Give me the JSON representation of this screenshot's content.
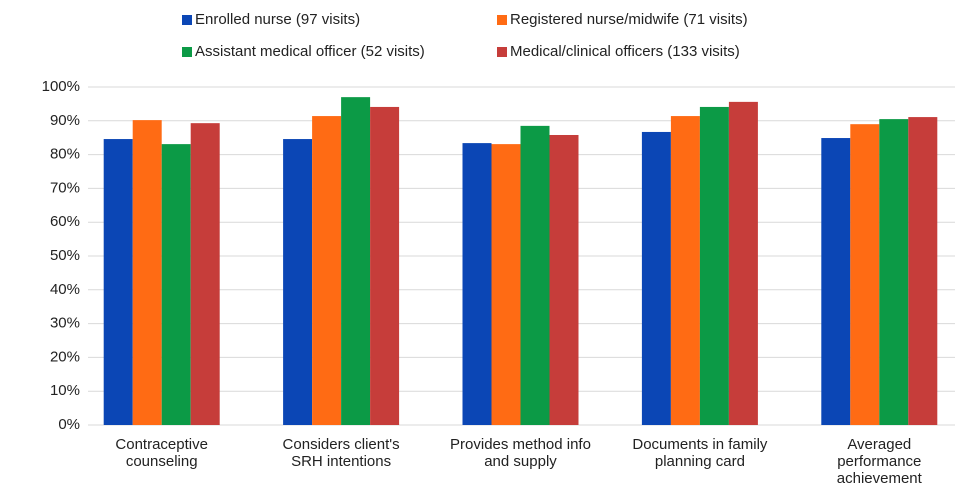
{
  "chart_data": {
    "type": "bar",
    "categories": [
      "Contraceptive\ncounseling",
      "Considers client's\nSRH intentions",
      "Provides method info\nand supply",
      "Documents in family\nplanning card",
      "Averaged\nperformance\nachievement"
    ],
    "series": [
      {
        "name": "Enrolled nurse (97 visits)",
        "color": "#0b46b5",
        "values": [
          84.6,
          84.6,
          83.4,
          86.7,
          84.9
        ]
      },
      {
        "name": "Registered nurse/midwife (71 visits)",
        "color": "#ff6b14",
        "values": [
          90.2,
          91.4,
          83.1,
          91.4,
          89.0
        ]
      },
      {
        "name": "Assistant medical officer (52 visits)",
        "color": "#0c9a46",
        "values": [
          83.1,
          97.0,
          88.5,
          94.1,
          90.5
        ]
      },
      {
        "name": "Medical/clinical officers (133 visits)",
        "color": "#c63d3a",
        "values": [
          89.3,
          94.1,
          85.8,
          95.6,
          91.1
        ]
      }
    ],
    "ylim": [
      0,
      100
    ],
    "yticks": [
      {
        "value": 0,
        "label": "0%"
      },
      {
        "value": 10,
        "label": "10%"
      },
      {
        "value": 20,
        "label": "20%"
      },
      {
        "value": 30,
        "label": "30%"
      },
      {
        "value": 40,
        "label": "40%"
      },
      {
        "value": 50,
        "label": "50%"
      },
      {
        "value": 60,
        "label": "60%"
      },
      {
        "value": 70,
        "label": "70%"
      },
      {
        "value": 80,
        "label": "80%"
      },
      {
        "value": 90,
        "label": "90%"
      },
      {
        "value": 100,
        "label": "100%"
      }
    ],
    "grid": true
  }
}
